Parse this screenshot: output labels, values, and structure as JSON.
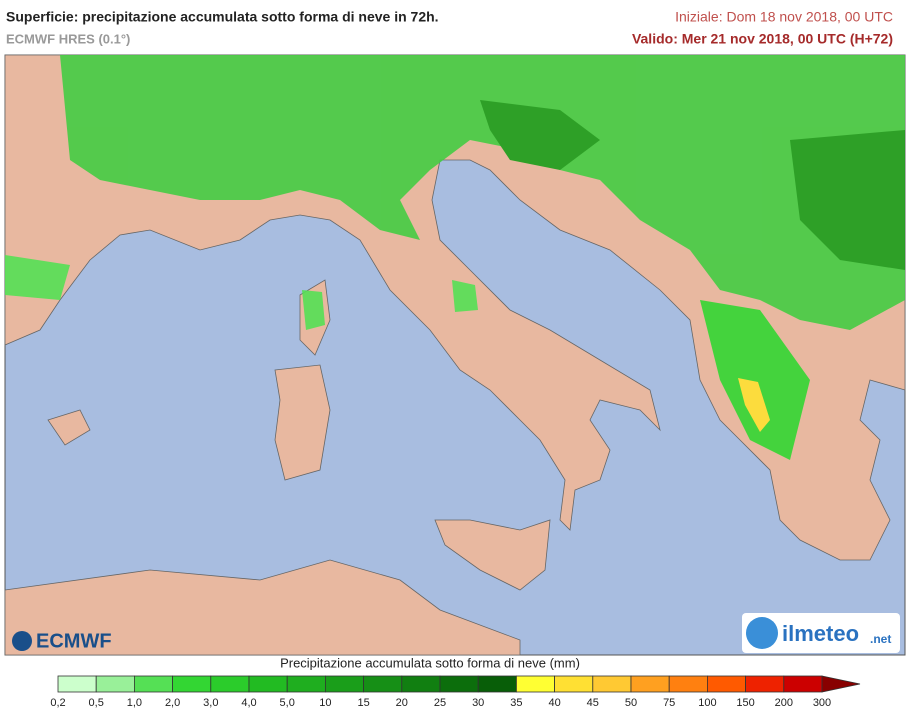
{
  "header": {
    "title": "Superficie: precipitazione accumulata sotto forma di neve in 72h.",
    "model": "ECMWF HRES (0.1°)",
    "initial": "Iniziale: Dom 18 nov 2018, 00 UTC",
    "valid": "Valido: Mer 21 nov 2018, 00 UTC (H+72)"
  },
  "logos": {
    "left": "ECMWF",
    "right": "ilmeteo",
    "right_suffix": ".net"
  },
  "legend": {
    "title": "Precipitazione accumulata sotto forma di neve (mm)",
    "labels": [
      "0,2",
      "0,5",
      "1,0",
      "2,0",
      "3,0",
      "4,0",
      "5,0",
      "10",
      "15",
      "20",
      "25",
      "30",
      "35",
      "40",
      "45",
      "50",
      "75",
      "100",
      "150",
      "200",
      "300"
    ],
    "colors": [
      "#ccffcc",
      "#99f099",
      "#55e055",
      "#33d633",
      "#2bcc2b",
      "#22bb22",
      "#1fae1f",
      "#1a9e1a",
      "#168f16",
      "#117f11",
      "#0c6e0c",
      "#085e08",
      "#ffff33",
      "#ffe033",
      "#ffc933",
      "#ffa020",
      "#ff8010",
      "#ff5a00",
      "#ee2200",
      "#cc0000",
      "#880000"
    ]
  }
}
